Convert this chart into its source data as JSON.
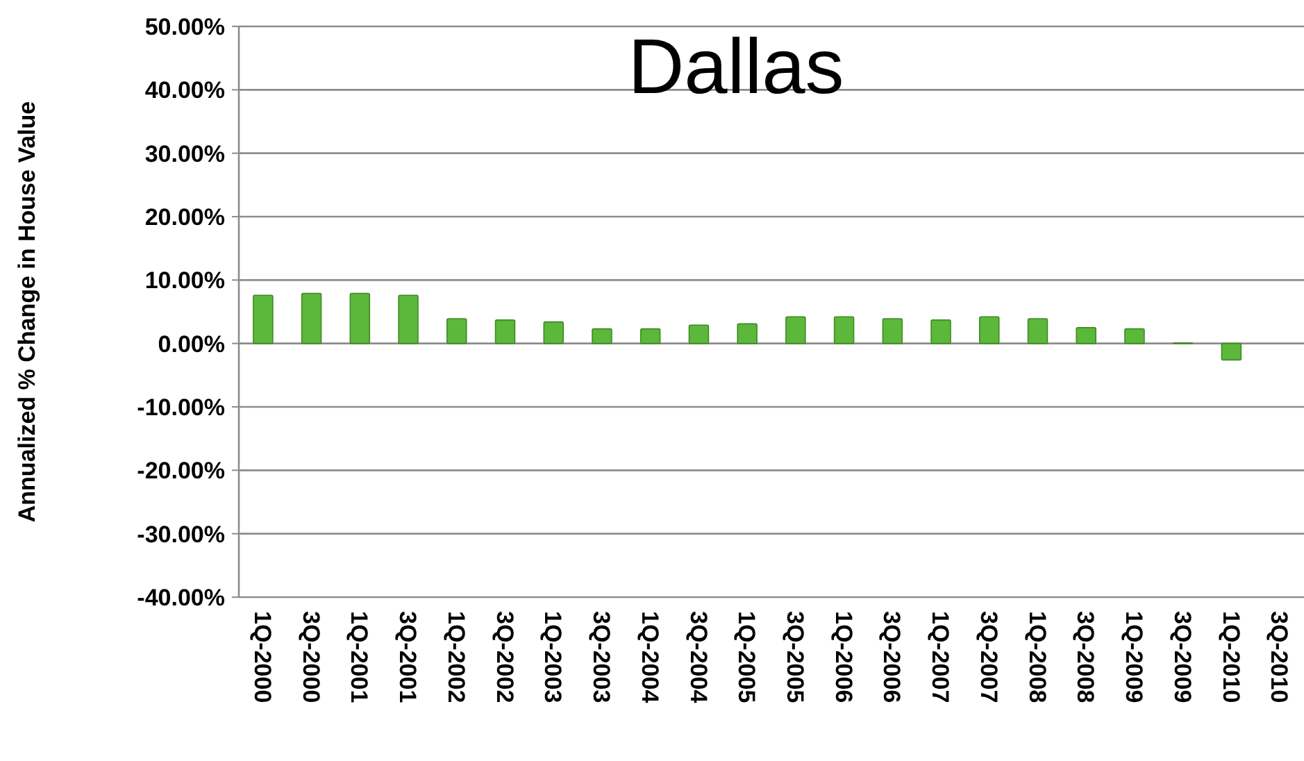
{
  "chart_data": {
    "type": "bar",
    "title": "Dallas",
    "ylabel": "Annualized % Change in House Value",
    "categories": [
      "1Q-2000",
      "3Q-2000",
      "1Q-2001",
      "3Q-2001",
      "1Q-2002",
      "3Q-2002",
      "1Q-2003",
      "3Q-2003",
      "1Q-2004",
      "3Q-2004",
      "1Q-2005",
      "3Q-2005",
      "1Q-2006",
      "3Q-2006",
      "1Q-2007",
      "3Q-2007",
      "1Q-2008",
      "3Q-2008",
      "1Q-2009",
      "3Q-2009",
      "1Q-2010",
      "3Q-2010"
    ],
    "values": [
      7.6,
      7.9,
      7.9,
      7.6,
      3.9,
      3.7,
      3.4,
      2.3,
      2.3,
      2.9,
      3.1,
      4.2,
      4.2,
      3.9,
      3.7,
      4.2,
      3.9,
      2.5,
      2.3,
      0.1,
      -2.6,
      null
    ],
    "color": "#5cb83a",
    "ylim": [
      -40,
      50
    ],
    "yticks": [
      {
        "value": -40,
        "label": "-40.00%"
      },
      {
        "value": -30,
        "label": "-30.00%"
      },
      {
        "value": -20,
        "label": "-20.00%"
      },
      {
        "value": -10,
        "label": "-10.00%"
      },
      {
        "value": 0,
        "label": "0.00%"
      },
      {
        "value": 10,
        "label": "10.00%"
      },
      {
        "value": 20,
        "label": "20.00%"
      },
      {
        "value": 30,
        "label": "30.00%"
      },
      {
        "value": 40,
        "label": "40.00%"
      },
      {
        "value": 50,
        "label": "50.00%"
      }
    ],
    "grid": "y"
  }
}
